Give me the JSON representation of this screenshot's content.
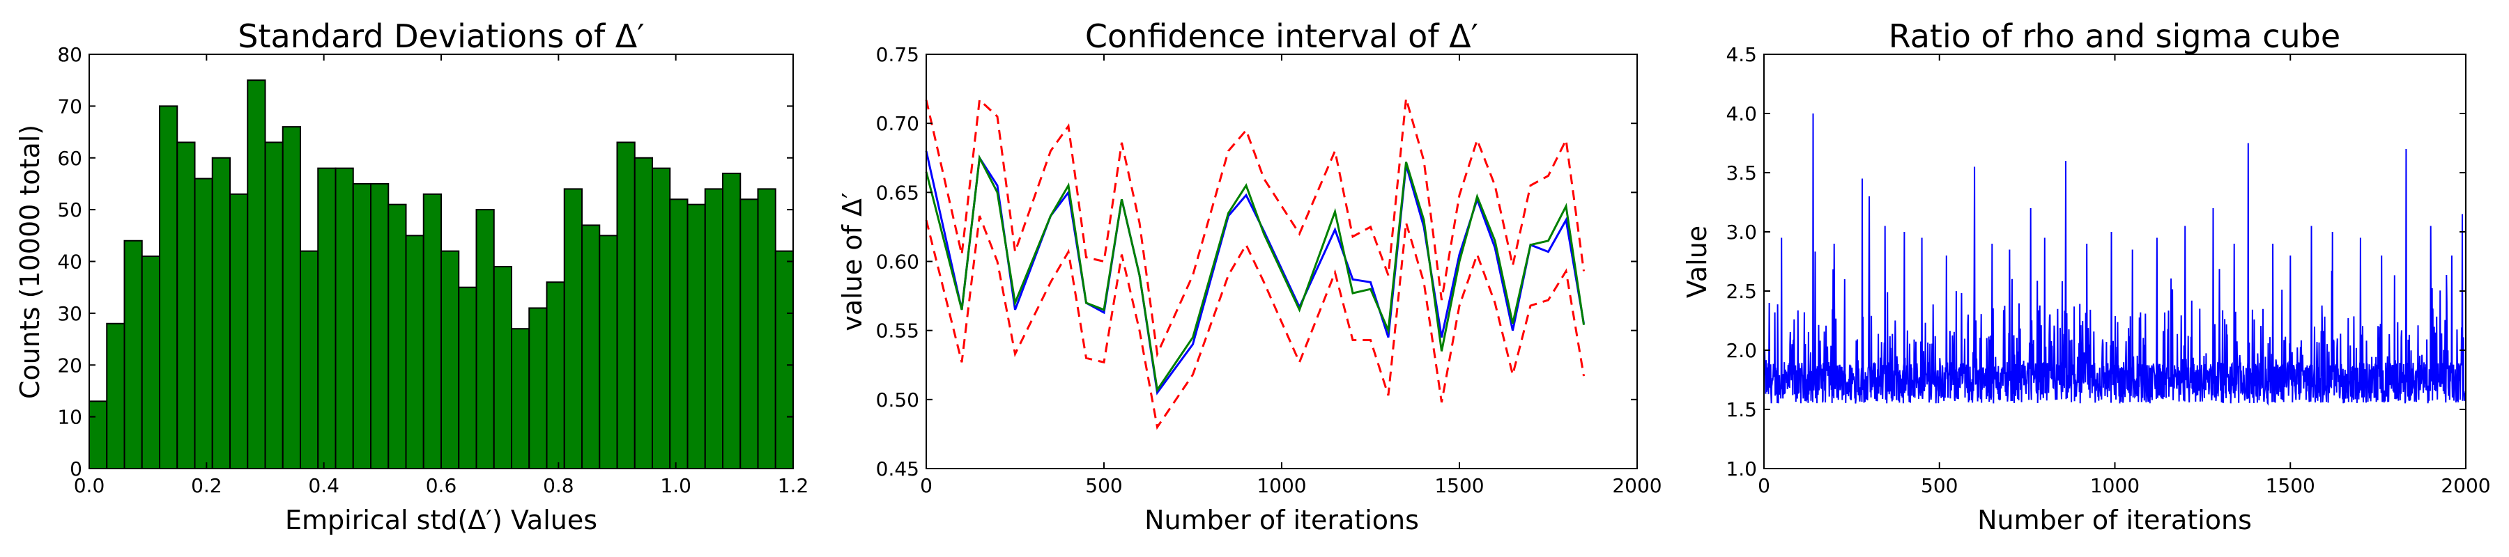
{
  "chart_data": [
    {
      "type": "bar",
      "title": "Standard Deviations of Δ′",
      "xlabel": "Empirical std(Δ′) Values",
      "ylabel": "Counts (10000 total)",
      "xlim": [
        0,
        1.2
      ],
      "ylim": [
        0,
        80
      ],
      "xticks": [
        "0.0",
        "0.2",
        "0.4",
        "0.6",
        "0.8",
        "1.0",
        "1.2"
      ],
      "yticks": [
        "0",
        "10",
        "20",
        "30",
        "40",
        "50",
        "60",
        "70",
        "80"
      ],
      "bin_edges_start": 0.0,
      "bin_width": 0.03,
      "values": [
        13,
        28,
        44,
        41,
        70,
        63,
        56,
        60,
        53,
        75,
        63,
        66,
        42,
        58,
        58,
        55,
        55,
        51,
        45,
        53,
        42,
        35,
        50,
        39,
        27,
        31,
        36,
        54,
        47,
        45,
        63,
        60,
        58,
        52,
        51,
        54,
        57,
        52,
        54,
        42
      ],
      "bar_color": "#008000",
      "grid": false
    },
    {
      "type": "line",
      "title": "Confidence interval of Δ′",
      "xlabel": "Number of iterations",
      "ylabel": "value of Δ′",
      "xlim": [
        0,
        2000
      ],
      "ylim": [
        0.45,
        0.75
      ],
      "xticks": [
        "0",
        "500",
        "1000",
        "1500",
        "2000"
      ],
      "yticks": [
        "0.45",
        "0.50",
        "0.55",
        "0.60",
        "0.65",
        "0.70",
        "0.75"
      ],
      "x": [
        0,
        100,
        150,
        200,
        250,
        350,
        400,
        450,
        500,
        550,
        600,
        650,
        750,
        850,
        900,
        950,
        1050,
        1150,
        1200,
        1250,
        1300,
        1350,
        1400,
        1450,
        1500,
        1550,
        1600,
        1650,
        1700,
        1750,
        1800,
        1850
      ],
      "series": [
        {
          "values": [
            0.68,
            0.565,
            0.675,
            0.655,
            0.565,
            0.633,
            0.65,
            0.57,
            0.563,
            0.645,
            0.59,
            0.505,
            0.54,
            0.633,
            0.648,
            0.622,
            0.567,
            0.623,
            0.587,
            0.585,
            0.545,
            0.67,
            0.625,
            0.545,
            0.605,
            0.645,
            0.61,
            0.55,
            0.612,
            0.607,
            0.63,
            0.555
          ],
          "color": "#0000ff",
          "style": "solid"
        },
        {
          "values": [
            0.665,
            0.565,
            0.675,
            0.65,
            0.57,
            0.633,
            0.655,
            0.57,
            0.565,
            0.645,
            0.59,
            0.507,
            0.545,
            0.635,
            0.655,
            0.62,
            0.565,
            0.636,
            0.577,
            0.58,
            0.55,
            0.672,
            0.63,
            0.535,
            0.6,
            0.647,
            0.615,
            0.555,
            0.612,
            0.615,
            0.64,
            0.554
          ],
          "color": "#008000",
          "style": "solid"
        },
        {
          "values": [
            0.717,
            0.605,
            0.717,
            0.705,
            0.607,
            0.68,
            0.698,
            0.603,
            0.6,
            0.686,
            0.628,
            0.533,
            0.59,
            0.68,
            0.695,
            0.66,
            0.62,
            0.68,
            0.618,
            0.625,
            0.59,
            0.718,
            0.673,
            0.572,
            0.648,
            0.688,
            0.655,
            0.597,
            0.655,
            0.662,
            0.688,
            0.593
          ],
          "color": "#ff0000",
          "style": "dashed"
        },
        {
          "values": [
            0.63,
            0.527,
            0.633,
            0.6,
            0.533,
            0.585,
            0.607,
            0.53,
            0.527,
            0.605,
            0.55,
            0.48,
            0.518,
            0.59,
            0.612,
            0.585,
            0.527,
            0.592,
            0.543,
            0.543,
            0.503,
            0.628,
            0.585,
            0.498,
            0.568,
            0.605,
            0.57,
            0.518,
            0.568,
            0.572,
            0.593,
            0.517
          ],
          "color": "#ff0000",
          "style": "dashed"
        }
      ],
      "grid": false
    },
    {
      "type": "line",
      "title": "Ratio of rho and sigma cube",
      "xlabel": "Number of iterations",
      "ylabel": "Value",
      "xlim": [
        0,
        2000
      ],
      "ylim": [
        1.0,
        4.5
      ],
      "xticks": [
        "0",
        "500",
        "1000",
        "1500",
        "2000"
      ],
      "yticks": [
        "1.0",
        "1.5",
        "2.0",
        "2.5",
        "3.0",
        "3.5",
        "4.0",
        "4.5"
      ],
      "n_points": 2000,
      "baseline": 1.5,
      "typical_range": [
        1.45,
        2.6
      ],
      "spikes": [
        [
          15,
          2.4
        ],
        [
          50,
          2.95
        ],
        [
          140,
          4.0
        ],
        [
          200,
          2.9
        ],
        [
          230,
          2.6
        ],
        [
          280,
          3.45
        ],
        [
          300,
          3.3
        ],
        [
          345,
          3.05
        ],
        [
          400,
          3.0
        ],
        [
          450,
          2.95
        ],
        [
          520,
          2.8
        ],
        [
          600,
          3.55
        ],
        [
          650,
          2.9
        ],
        [
          700,
          2.85
        ],
        [
          760,
          3.2
        ],
        [
          800,
          2.95
        ],
        [
          860,
          3.6
        ],
        [
          920,
          2.9
        ],
        [
          990,
          3.0
        ],
        [
          1050,
          2.85
        ],
        [
          1120,
          2.95
        ],
        [
          1200,
          3.05
        ],
        [
          1280,
          3.2
        ],
        [
          1340,
          2.9
        ],
        [
          1380,
          3.75
        ],
        [
          1450,
          2.9
        ],
        [
          1500,
          2.8
        ],
        [
          1560,
          3.05
        ],
        [
          1620,
          3.0
        ],
        [
          1700,
          2.95
        ],
        [
          1760,
          2.8
        ],
        [
          1830,
          3.7
        ],
        [
          1900,
          3.05
        ],
        [
          1960,
          2.8
        ],
        [
          1990,
          3.15
        ]
      ],
      "color": "#0000ff",
      "grid": false
    }
  ]
}
